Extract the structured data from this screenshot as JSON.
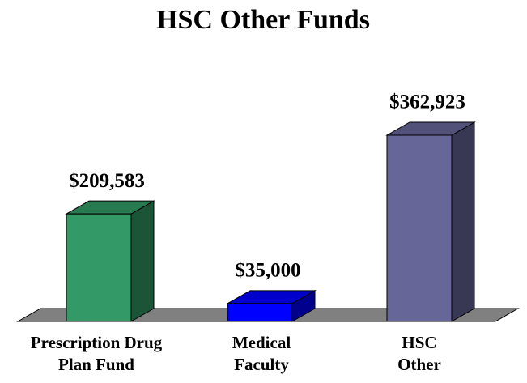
{
  "chart_data": {
    "type": "bar3d",
    "title": "HSC Other Funds",
    "categories": [
      [
        "Prescription Drug",
        "Plan Fund"
      ],
      [
        "Medical",
        "Faculty"
      ],
      [
        "HSC",
        "Other"
      ]
    ],
    "values": [
      209583,
      35000,
      362923
    ],
    "value_labels": [
      "$209,583",
      "$35,000",
      "$362,923"
    ],
    "colors": [
      "#339966",
      "#0000ff",
      "#666699"
    ]
  }
}
